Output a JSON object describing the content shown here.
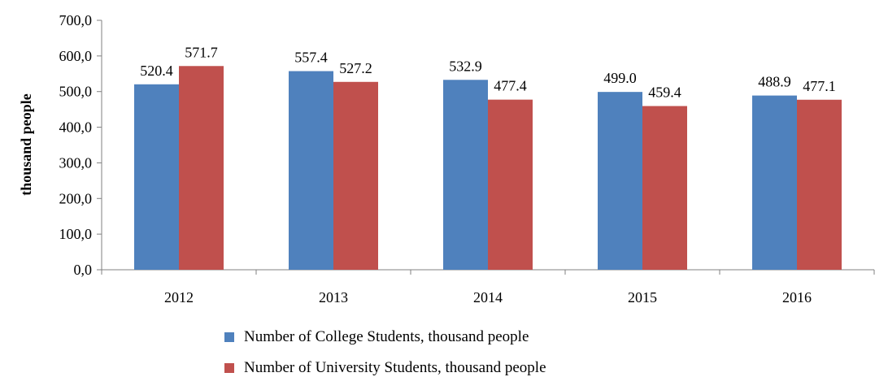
{
  "chart_data": {
    "type": "bar",
    "ylabel": "thousand  people",
    "ylim": [
      0,
      700
    ],
    "y_ticks": [
      "0,0",
      "100,0",
      "200,0",
      "300,0",
      "400,0",
      "500,0",
      "600,0",
      "700,0"
    ],
    "y_tick_values": [
      0,
      100,
      200,
      300,
      400,
      500,
      600,
      700
    ],
    "categories": [
      "2012",
      "2013",
      "2014",
      "2015",
      "2016"
    ],
    "series": [
      {
        "name": "Number of College Students, thousand people",
        "color": "#4f81bd",
        "values": [
          520.4,
          557.4,
          532.9,
          499.0,
          488.9
        ],
        "labels": [
          "520.4",
          "557.4",
          "532.9",
          "499.0",
          "488.9"
        ]
      },
      {
        "name": "Number of University Students, thousand people",
        "color": "#c0504d",
        "values": [
          571.7,
          527.2,
          477.4,
          459.4,
          477.1
        ],
        "labels": [
          "571.7",
          "527.2",
          "477.4",
          "459.4",
          "477.1"
        ]
      }
    ],
    "grid": false,
    "legend_position": "bottom"
  }
}
